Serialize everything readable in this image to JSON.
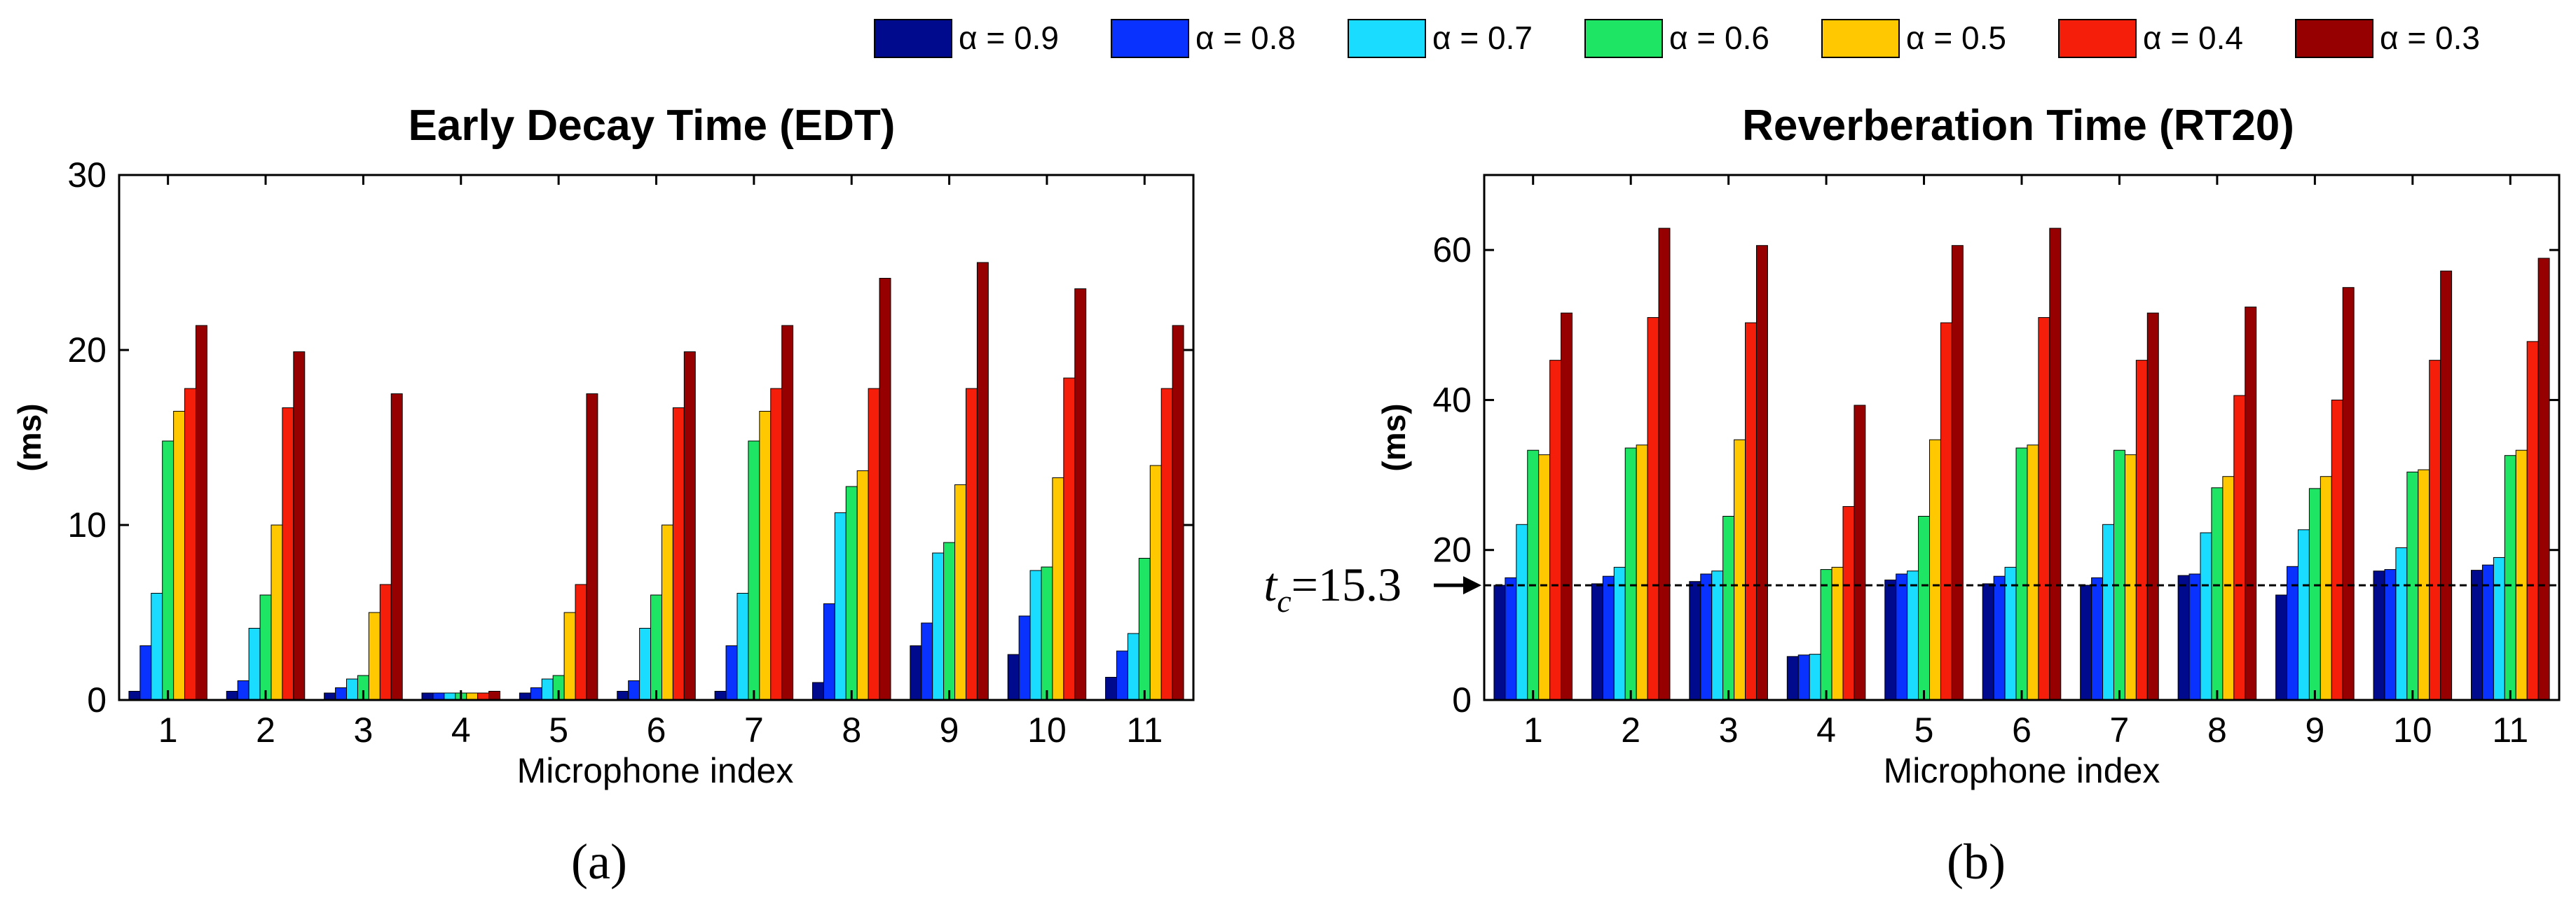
{
  "colors": [
    "#000a8c",
    "#0a32ff",
    "#19dcff",
    "#1ee664",
    "#ffc800",
    "#f51e0a",
    "#960000"
  ],
  "legend": {
    "prefix": "α = ",
    "entries": [
      "0.9",
      "0.8",
      "0.7",
      "0.6",
      "0.5",
      "0.4",
      "0.3"
    ]
  },
  "chart_data": [
    {
      "type": "bar",
      "title": "Early Decay Time (EDT)",
      "xlabel": "Microphone index",
      "ylabel": "(ms)",
      "caption": "(a)",
      "ylim": [
        0,
        30
      ],
      "yticks": [
        "0",
        "10",
        "20",
        "30"
      ],
      "categories": [
        "1",
        "2",
        "3",
        "4",
        "5",
        "6",
        "7",
        "8",
        "9",
        "10",
        "11"
      ],
      "series": [
        {
          "name": "α = 0.9",
          "values": [
            0.5,
            0.5,
            0.4,
            0.4,
            0.4,
            0.5,
            0.5,
            1.0,
            3.1,
            2.6,
            1.3
          ]
        },
        {
          "name": "α = 0.8",
          "values": [
            3.1,
            1.1,
            0.7,
            0.4,
            0.7,
            1.1,
            3.1,
            5.5,
            4.4,
            4.8,
            2.8
          ]
        },
        {
          "name": "α = 0.7",
          "values": [
            6.1,
            4.1,
            1.2,
            0.4,
            1.2,
            4.1,
            6.1,
            10.7,
            8.4,
            7.4,
            3.8
          ]
        },
        {
          "name": "α = 0.6",
          "values": [
            14.8,
            6.0,
            1.4,
            0.4,
            1.4,
            6.0,
            14.8,
            12.2,
            9.0,
            7.6,
            8.1
          ]
        },
        {
          "name": "α = 0.5",
          "values": [
            16.5,
            10.0,
            5.0,
            0.4,
            5.0,
            10.0,
            16.5,
            13.1,
            12.3,
            12.7,
            13.4
          ]
        },
        {
          "name": "α = 0.4",
          "values": [
            17.8,
            16.7,
            6.6,
            0.4,
            6.6,
            16.7,
            17.8,
            17.8,
            17.8,
            18.4,
            17.8
          ]
        },
        {
          "name": "α = 0.3",
          "values": [
            21.4,
            19.9,
            17.5,
            0.5,
            17.5,
            19.9,
            21.4,
            24.1,
            25.0,
            23.5,
            21.4
          ]
        }
      ]
    },
    {
      "type": "bar",
      "title": "Reverberation Time (RT20)",
      "xlabel": "Microphone index",
      "ylabel": "(ms)",
      "caption": "(b)",
      "ylim": [
        0,
        70
      ],
      "yticks": [
        "0",
        "20",
        "40",
        "60"
      ],
      "categories": [
        "1",
        "2",
        "3",
        "4",
        "5",
        "6",
        "7",
        "8",
        "9",
        "10",
        "11"
      ],
      "series": [
        {
          "name": "α = 0.9",
          "values": [
            15.3,
            15.5,
            15.8,
            5.8,
            16.0,
            15.5,
            15.3,
            16.6,
            14.0,
            17.2,
            17.3
          ]
        },
        {
          "name": "α = 0.8",
          "values": [
            16.3,
            16.5,
            16.8,
            6.0,
            16.8,
            16.5,
            16.3,
            16.8,
            17.8,
            17.4,
            18.0
          ]
        },
        {
          "name": "α = 0.7",
          "values": [
            23.4,
            17.7,
            17.2,
            6.1,
            17.2,
            17.7,
            23.4,
            22.3,
            22.7,
            20.3,
            19.0
          ]
        },
        {
          "name": "α = 0.6",
          "values": [
            33.3,
            33.6,
            24.5,
            17.4,
            24.5,
            33.6,
            33.3,
            28.3,
            28.2,
            30.4,
            32.6
          ]
        },
        {
          "name": "α = 0.5",
          "values": [
            32.7,
            34.0,
            34.7,
            17.7,
            34.7,
            34.0,
            32.7,
            29.8,
            29.8,
            30.7,
            33.3
          ]
        },
        {
          "name": "α = 0.4",
          "values": [
            45.3,
            51.0,
            50.3,
            25.8,
            50.3,
            51.0,
            45.3,
            40.6,
            40.0,
            45.3,
            47.8
          ]
        },
        {
          "name": "α = 0.3",
          "values": [
            51.6,
            62.9,
            60.6,
            39.3,
            60.6,
            62.9,
            51.6,
            52.4,
            55.0,
            57.2,
            58.9
          ]
        }
      ],
      "annotation": {
        "symbol": "t",
        "subscript": "c",
        "text": "=15.3",
        "value": 15.3
      }
    }
  ]
}
